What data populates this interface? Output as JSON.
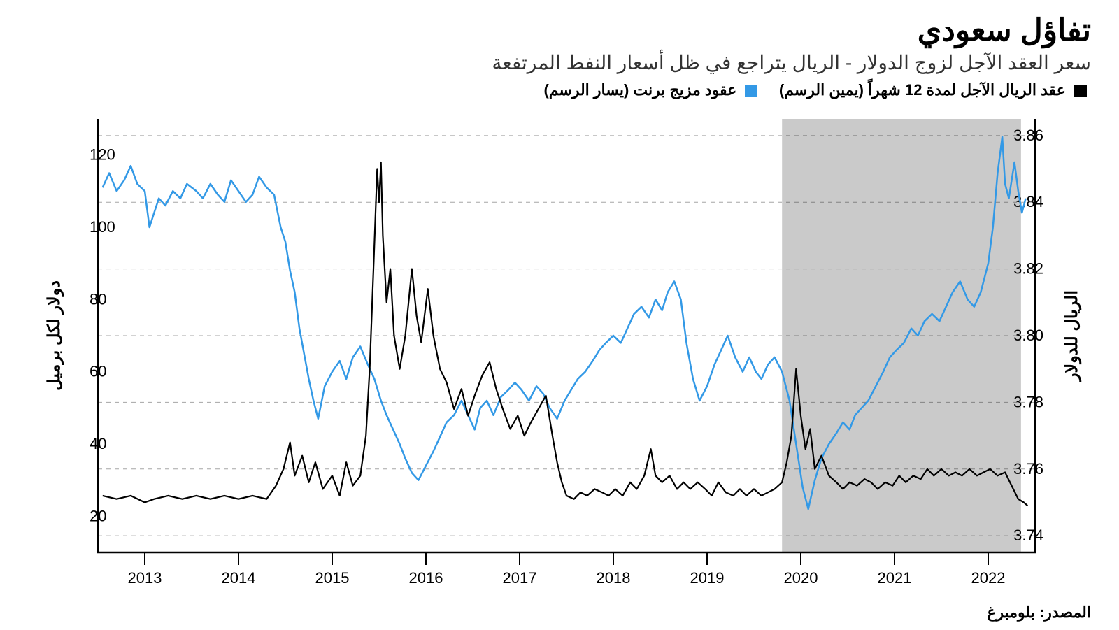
{
  "title": "تفاؤل سعودي",
  "subtitle": "سعر العقد الآجل لزوج الدولار - الريال يتراجع في ظل أسعار النفط المرتفعة",
  "legend": {
    "series_a": {
      "label": "عقد الريال الآجل لمدة 12 شهراً (يمين الرسم)",
      "swatch": "#000000"
    },
    "series_b": {
      "label": "عقود مزيج برنت (يسار الرسم)",
      "swatch": "#3399e6"
    }
  },
  "source": "المصدر: بلومبرغ",
  "chart": {
    "type": "dual-axis-line",
    "background": "#ffffff",
    "grid_color": "#000000",
    "grid_dash": "6 6",
    "grid_opacity": 0.35,
    "axis_line_width": 2.5,
    "font_family": "Segoe UI, Tahoma, Arial, sans-serif",
    "tick_fontsize": 22,
    "axis_label_fontsize": 24,
    "highlight_region": {
      "x_from": 2019.8,
      "x_to": 2022.35,
      "fill": "#9e9e9e",
      "opacity": 0.55
    },
    "x": {
      "min": 2012.5,
      "max": 2022.5,
      "ticks": [
        2013,
        2014,
        2015,
        2016,
        2017,
        2018,
        2019,
        2020,
        2021,
        2022
      ]
    },
    "y_left": {
      "label": "دولار لكل برميل",
      "min": 10,
      "max": 130,
      "ticks": [
        20,
        40,
        60,
        80,
        100,
        120
      ]
    },
    "y_right": {
      "label": "الريال للدولار",
      "min": 3.735,
      "max": 3.865,
      "ticks": [
        3.74,
        3.76,
        3.78,
        3.8,
        3.82,
        3.84,
        3.86
      ]
    },
    "series": [
      {
        "id": "brent",
        "axis": "left",
        "color": "#3399e6",
        "width": 2.5,
        "data": [
          [
            2012.55,
            111
          ],
          [
            2012.62,
            115
          ],
          [
            2012.7,
            110
          ],
          [
            2012.78,
            113
          ],
          [
            2012.85,
            117
          ],
          [
            2012.92,
            112
          ],
          [
            2013.0,
            110
          ],
          [
            2013.05,
            100
          ],
          [
            2013.1,
            104
          ],
          [
            2013.15,
            108
          ],
          [
            2013.22,
            106
          ],
          [
            2013.3,
            110
          ],
          [
            2013.38,
            108
          ],
          [
            2013.45,
            112
          ],
          [
            2013.55,
            110
          ],
          [
            2013.62,
            108
          ],
          [
            2013.7,
            112
          ],
          [
            2013.78,
            109
          ],
          [
            2013.85,
            107
          ],
          [
            2013.92,
            113
          ],
          [
            2014.0,
            110
          ],
          [
            2014.08,
            107
          ],
          [
            2014.15,
            109
          ],
          [
            2014.22,
            114
          ],
          [
            2014.3,
            111
          ],
          [
            2014.38,
            109
          ],
          [
            2014.45,
            100
          ],
          [
            2014.5,
            96
          ],
          [
            2014.55,
            88
          ],
          [
            2014.6,
            82
          ],
          [
            2014.65,
            72
          ],
          [
            2014.7,
            65
          ],
          [
            2014.75,
            58
          ],
          [
            2014.8,
            52
          ],
          [
            2014.85,
            47
          ],
          [
            2014.92,
            56
          ],
          [
            2015.0,
            60
          ],
          [
            2015.08,
            63
          ],
          [
            2015.15,
            58
          ],
          [
            2015.22,
            64
          ],
          [
            2015.3,
            67
          ],
          [
            2015.38,
            62
          ],
          [
            2015.45,
            58
          ],
          [
            2015.52,
            52
          ],
          [
            2015.58,
            48
          ],
          [
            2015.65,
            44
          ],
          [
            2015.72,
            40
          ],
          [
            2015.78,
            36
          ],
          [
            2015.85,
            32
          ],
          [
            2015.92,
            30
          ],
          [
            2016.0,
            34
          ],
          [
            2016.08,
            38
          ],
          [
            2016.15,
            42
          ],
          [
            2016.22,
            46
          ],
          [
            2016.3,
            48
          ],
          [
            2016.38,
            52
          ],
          [
            2016.45,
            48
          ],
          [
            2016.52,
            44
          ],
          [
            2016.58,
            50
          ],
          [
            2016.65,
            52
          ],
          [
            2016.72,
            48
          ],
          [
            2016.8,
            53
          ],
          [
            2016.88,
            55
          ],
          [
            2016.95,
            57
          ],
          [
            2017.02,
            55
          ],
          [
            2017.1,
            52
          ],
          [
            2017.18,
            56
          ],
          [
            2017.25,
            54
          ],
          [
            2017.32,
            50
          ],
          [
            2017.4,
            47
          ],
          [
            2017.48,
            52
          ],
          [
            2017.55,
            55
          ],
          [
            2017.62,
            58
          ],
          [
            2017.7,
            60
          ],
          [
            2017.78,
            63
          ],
          [
            2017.85,
            66
          ],
          [
            2017.92,
            68
          ],
          [
            2018.0,
            70
          ],
          [
            2018.08,
            68
          ],
          [
            2018.15,
            72
          ],
          [
            2018.22,
            76
          ],
          [
            2018.3,
            78
          ],
          [
            2018.38,
            75
          ],
          [
            2018.45,
            80
          ],
          [
            2018.52,
            77
          ],
          [
            2018.58,
            82
          ],
          [
            2018.65,
            85
          ],
          [
            2018.72,
            80
          ],
          [
            2018.78,
            68
          ],
          [
            2018.85,
            58
          ],
          [
            2018.92,
            52
          ],
          [
            2019.0,
            56
          ],
          [
            2019.08,
            62
          ],
          [
            2019.15,
            66
          ],
          [
            2019.22,
            70
          ],
          [
            2019.3,
            64
          ],
          [
            2019.38,
            60
          ],
          [
            2019.45,
            64
          ],
          [
            2019.52,
            60
          ],
          [
            2019.58,
            58
          ],
          [
            2019.65,
            62
          ],
          [
            2019.72,
            64
          ],
          [
            2019.8,
            60
          ],
          [
            2019.88,
            52
          ],
          [
            2019.95,
            40
          ],
          [
            2020.02,
            28
          ],
          [
            2020.08,
            22
          ],
          [
            2020.15,
            30
          ],
          [
            2020.22,
            36
          ],
          [
            2020.3,
            40
          ],
          [
            2020.38,
            43
          ],
          [
            2020.45,
            46
          ],
          [
            2020.52,
            44
          ],
          [
            2020.58,
            48
          ],
          [
            2020.65,
            50
          ],
          [
            2020.72,
            52
          ],
          [
            2020.8,
            56
          ],
          [
            2020.88,
            60
          ],
          [
            2020.95,
            64
          ],
          [
            2021.02,
            66
          ],
          [
            2021.1,
            68
          ],
          [
            2021.18,
            72
          ],
          [
            2021.25,
            70
          ],
          [
            2021.32,
            74
          ],
          [
            2021.4,
            76
          ],
          [
            2021.48,
            74
          ],
          [
            2021.55,
            78
          ],
          [
            2021.62,
            82
          ],
          [
            2021.7,
            85
          ],
          [
            2021.78,
            80
          ],
          [
            2021.85,
            78
          ],
          [
            2021.92,
            82
          ],
          [
            2022.0,
            90
          ],
          [
            2022.05,
            100
          ],
          [
            2022.1,
            115
          ],
          [
            2022.15,
            125
          ],
          [
            2022.18,
            112
          ],
          [
            2022.22,
            108
          ],
          [
            2022.28,
            118
          ],
          [
            2022.32,
            110
          ],
          [
            2022.36,
            104
          ],
          [
            2022.4,
            108
          ]
        ]
      },
      {
        "id": "riyal_forward",
        "axis": "right",
        "color": "#000000",
        "width": 2.2,
        "data": [
          [
            2012.55,
            3.752
          ],
          [
            2012.7,
            3.751
          ],
          [
            2012.85,
            3.752
          ],
          [
            2013.0,
            3.75
          ],
          [
            2013.1,
            3.751
          ],
          [
            2013.25,
            3.752
          ],
          [
            2013.4,
            3.751
          ],
          [
            2013.55,
            3.752
          ],
          [
            2013.7,
            3.751
          ],
          [
            2013.85,
            3.752
          ],
          [
            2014.0,
            3.751
          ],
          [
            2014.15,
            3.752
          ],
          [
            2014.3,
            3.751
          ],
          [
            2014.4,
            3.755
          ],
          [
            2014.48,
            3.76
          ],
          [
            2014.55,
            3.768
          ],
          [
            2014.6,
            3.758
          ],
          [
            2014.68,
            3.764
          ],
          [
            2014.75,
            3.756
          ],
          [
            2014.82,
            3.762
          ],
          [
            2014.9,
            3.754
          ],
          [
            2015.0,
            3.758
          ],
          [
            2015.08,
            3.752
          ],
          [
            2015.15,
            3.762
          ],
          [
            2015.22,
            3.755
          ],
          [
            2015.3,
            3.758
          ],
          [
            2015.36,
            3.77
          ],
          [
            2015.4,
            3.79
          ],
          [
            2015.44,
            3.82
          ],
          [
            2015.48,
            3.85
          ],
          [
            2015.5,
            3.84
          ],
          [
            2015.52,
            3.852
          ],
          [
            2015.54,
            3.83
          ],
          [
            2015.58,
            3.81
          ],
          [
            2015.62,
            3.82
          ],
          [
            2015.66,
            3.8
          ],
          [
            2015.72,
            3.79
          ],
          [
            2015.78,
            3.8
          ],
          [
            2015.85,
            3.82
          ],
          [
            2015.9,
            3.806
          ],
          [
            2015.95,
            3.798
          ],
          [
            2016.02,
            3.814
          ],
          [
            2016.08,
            3.8
          ],
          [
            2016.15,
            3.79
          ],
          [
            2016.22,
            3.786
          ],
          [
            2016.3,
            3.778
          ],
          [
            2016.38,
            3.784
          ],
          [
            2016.45,
            3.776
          ],
          [
            2016.52,
            3.782
          ],
          [
            2016.6,
            3.788
          ],
          [
            2016.68,
            3.792
          ],
          [
            2016.75,
            3.784
          ],
          [
            2016.82,
            3.778
          ],
          [
            2016.9,
            3.772
          ],
          [
            2016.98,
            3.776
          ],
          [
            2017.05,
            3.77
          ],
          [
            2017.12,
            3.774
          ],
          [
            2017.2,
            3.778
          ],
          [
            2017.28,
            3.782
          ],
          [
            2017.35,
            3.77
          ],
          [
            2017.4,
            3.762
          ],
          [
            2017.45,
            3.756
          ],
          [
            2017.5,
            3.752
          ],
          [
            2017.58,
            3.751
          ],
          [
            2017.65,
            3.753
          ],
          [
            2017.72,
            3.752
          ],
          [
            2017.8,
            3.754
          ],
          [
            2017.88,
            3.753
          ],
          [
            2017.95,
            3.752
          ],
          [
            2018.02,
            3.754
          ],
          [
            2018.1,
            3.752
          ],
          [
            2018.18,
            3.756
          ],
          [
            2018.25,
            3.754
          ],
          [
            2018.33,
            3.758
          ],
          [
            2018.4,
            3.766
          ],
          [
            2018.45,
            3.758
          ],
          [
            2018.52,
            3.756
          ],
          [
            2018.6,
            3.758
          ],
          [
            2018.68,
            3.754
          ],
          [
            2018.75,
            3.756
          ],
          [
            2018.82,
            3.754
          ],
          [
            2018.9,
            3.756
          ],
          [
            2018.98,
            3.754
          ],
          [
            2019.05,
            3.752
          ],
          [
            2019.12,
            3.756
          ],
          [
            2019.2,
            3.753
          ],
          [
            2019.28,
            3.752
          ],
          [
            2019.35,
            3.754
          ],
          [
            2019.42,
            3.752
          ],
          [
            2019.5,
            3.754
          ],
          [
            2019.58,
            3.752
          ],
          [
            2019.65,
            3.753
          ],
          [
            2019.72,
            3.754
          ],
          [
            2019.8,
            3.756
          ],
          [
            2019.85,
            3.762
          ],
          [
            2019.9,
            3.77
          ],
          [
            2019.95,
            3.79
          ],
          [
            2020.0,
            3.776
          ],
          [
            2020.05,
            3.766
          ],
          [
            2020.1,
            3.772
          ],
          [
            2020.15,
            3.76
          ],
          [
            2020.22,
            3.764
          ],
          [
            2020.3,
            3.758
          ],
          [
            2020.38,
            3.756
          ],
          [
            2020.45,
            3.754
          ],
          [
            2020.52,
            3.756
          ],
          [
            2020.6,
            3.755
          ],
          [
            2020.68,
            3.757
          ],
          [
            2020.75,
            3.756
          ],
          [
            2020.82,
            3.754
          ],
          [
            2020.9,
            3.756
          ],
          [
            2020.98,
            3.755
          ],
          [
            2021.05,
            3.758
          ],
          [
            2021.12,
            3.756
          ],
          [
            2021.2,
            3.758
          ],
          [
            2021.28,
            3.757
          ],
          [
            2021.35,
            3.76
          ],
          [
            2021.42,
            3.758
          ],
          [
            2021.5,
            3.76
          ],
          [
            2021.58,
            3.758
          ],
          [
            2021.65,
            3.759
          ],
          [
            2021.72,
            3.758
          ],
          [
            2021.8,
            3.76
          ],
          [
            2021.88,
            3.758
          ],
          [
            2021.95,
            3.759
          ],
          [
            2022.02,
            3.76
          ],
          [
            2022.1,
            3.758
          ],
          [
            2022.18,
            3.759
          ],
          [
            2022.25,
            3.755
          ],
          [
            2022.32,
            3.751
          ],
          [
            2022.38,
            3.75
          ],
          [
            2022.42,
            3.749
          ]
        ]
      }
    ]
  }
}
